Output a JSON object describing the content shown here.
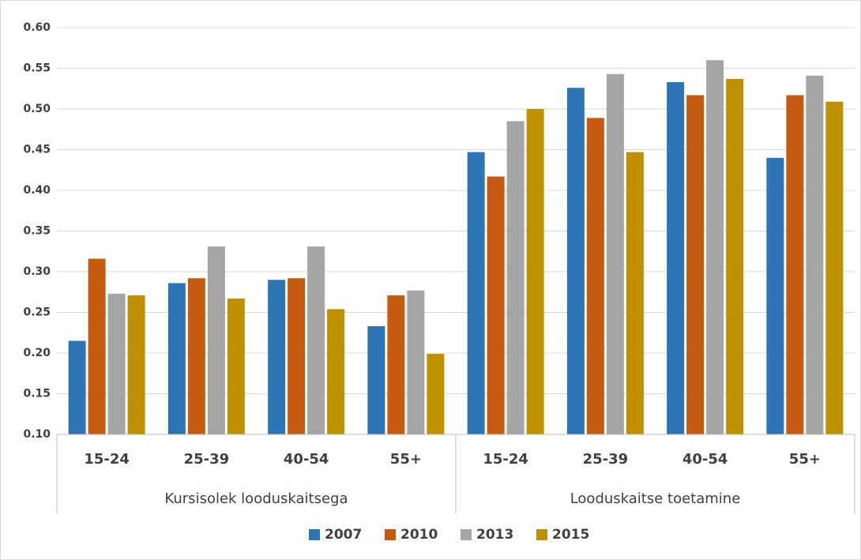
{
  "chart_data": {
    "type": "bar",
    "groups": [
      {
        "name": "Kursisolek looduskaitsega",
        "categories": [
          "15-24",
          "25-39",
          "40-54",
          "55+"
        ]
      },
      {
        "name": "Looduskaitse toetamine",
        "categories": [
          "15-24",
          "25-39",
          "40-54",
          "55+"
        ]
      }
    ],
    "series": [
      {
        "name": "2007",
        "color": "#2e75b6",
        "values": [
          0.215,
          0.286,
          0.29,
          0.233,
          0.447,
          0.526,
          0.533,
          0.44
        ]
      },
      {
        "name": "2010",
        "color": "#c55a11",
        "values": [
          0.316,
          0.292,
          0.292,
          0.271,
          0.417,
          0.489,
          0.517,
          0.517
        ]
      },
      {
        "name": "2013",
        "color": "#a5a5a5",
        "values": [
          0.273,
          0.331,
          0.331,
          0.277,
          0.485,
          0.543,
          0.56,
          0.541
        ]
      },
      {
        "name": "2015",
        "color": "#bf9000",
        "values": [
          0.271,
          0.267,
          0.254,
          0.199,
          0.5,
          0.447,
          0.537,
          0.509
        ]
      }
    ],
    "ylim": [
      0.1,
      0.6
    ],
    "yticks": [
      {
        "value": 0.1,
        "label": "0.10"
      },
      {
        "value": 0.15,
        "label": "0.15"
      },
      {
        "value": 0.2,
        "label": "0.20"
      },
      {
        "value": 0.25,
        "label": "0.25"
      },
      {
        "value": 0.3,
        "label": "0.30"
      },
      {
        "value": 0.35,
        "label": "0.35"
      },
      {
        "value": 0.4,
        "label": "0.40"
      },
      {
        "value": 0.45,
        "label": "0.45"
      },
      {
        "value": 0.5,
        "label": "0.50"
      },
      {
        "value": 0.55,
        "label": "0.55"
      },
      {
        "value": 0.6,
        "label": "0.60"
      }
    ],
    "grid": true,
    "legend": "bottom"
  }
}
